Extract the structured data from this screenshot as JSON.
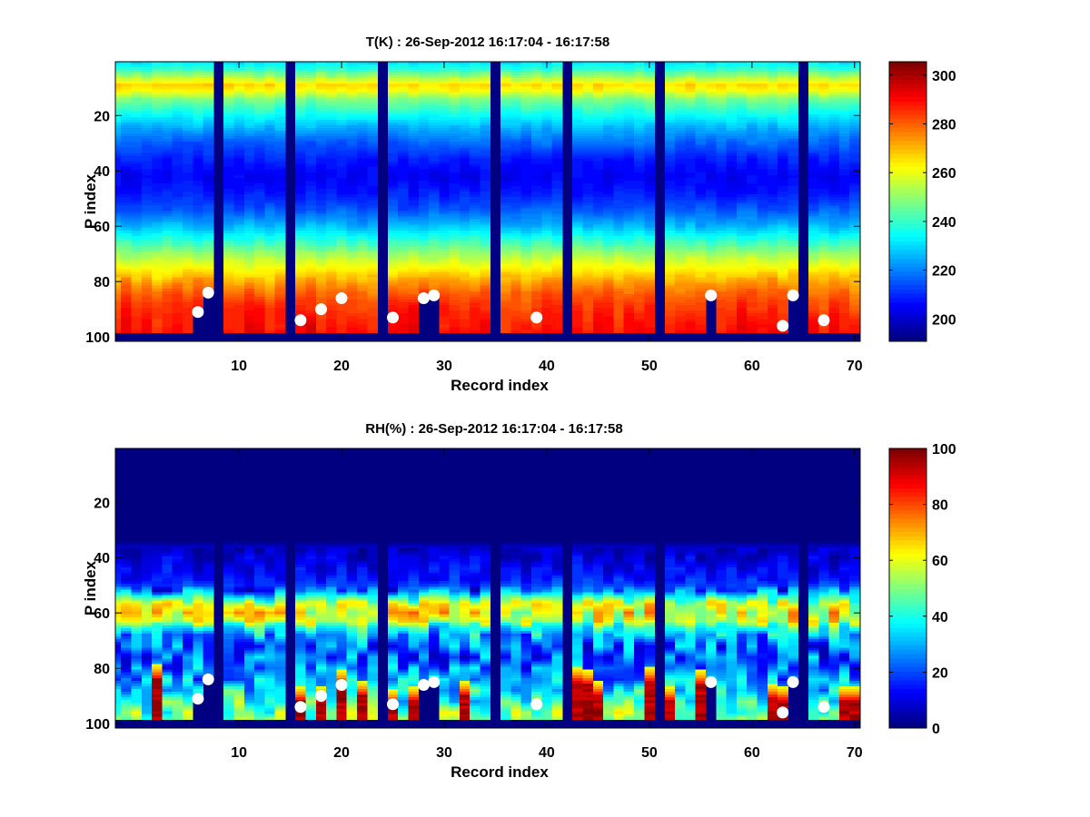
{
  "chart_data": [
    {
      "type": "heatmap",
      "title": "T(K) : 26-Sep-2012 16:17:04 - 16:17:58",
      "xlabel": "Record index",
      "ylabel": "P index",
      "xlim": [
        -2.05,
        70.55
      ],
      "ylim": [
        0.55,
        101.6
      ],
      "y_reversed": true,
      "xticks": [
        10,
        20,
        30,
        40,
        50,
        60,
        70
      ],
      "xtick_labels": [
        "10",
        "20",
        "30",
        "40",
        "50",
        "60",
        "70"
      ],
      "yticks": [
        20,
        40,
        60,
        80,
        100
      ],
      "ytick_labels": [
        "20",
        "40",
        "60",
        "80",
        "100"
      ],
      "colormap": "jet",
      "clim": [
        190.8,
        305.5
      ],
      "colorbar_ticks": [
        200,
        220,
        240,
        260,
        280,
        300
      ],
      "colorbar_labels": [
        "200",
        "220",
        "240",
        "260",
        "280",
        "300"
      ],
      "nan_color": "#000080",
      "record_range": [
        -2,
        70
      ],
      "p_range": [
        1,
        98
      ],
      "mean_profile": [
        [
          1,
          232
        ],
        [
          3,
          238
        ],
        [
          6,
          252
        ],
        [
          9,
          266
        ],
        [
          11,
          262
        ],
        [
          14,
          248
        ],
        [
          20,
          234
        ],
        [
          25,
          224
        ],
        [
          30,
          216
        ],
        [
          36,
          208
        ],
        [
          42,
          204
        ],
        [
          48,
          208
        ],
        [
          54,
          215
        ],
        [
          60,
          226
        ],
        [
          64,
          236
        ],
        [
          68,
          246
        ],
        [
          72,
          256
        ],
        [
          76,
          264
        ],
        [
          80,
          272
        ],
        [
          84,
          279
        ],
        [
          88,
          284
        ],
        [
          92,
          287
        ],
        [
          98,
          290
        ]
      ],
      "missing_records": [
        8,
        15,
        24,
        35,
        42,
        51,
        65
      ],
      "markers": [
        {
          "record": 6,
          "p": 91,
          "masked_below": true
        },
        {
          "record": 7,
          "p": 84,
          "masked_below": true
        },
        {
          "record": 16,
          "p": 94,
          "masked_below": false
        },
        {
          "record": 18,
          "p": 90,
          "masked_below": false
        },
        {
          "record": 20,
          "p": 86,
          "masked_below": false
        },
        {
          "record": 25,
          "p": 93,
          "masked_below": false
        },
        {
          "record": 28,
          "p": 86,
          "masked_below": true
        },
        {
          "record": 29,
          "p": 85,
          "masked_below": true
        },
        {
          "record": 39,
          "p": 93,
          "masked_below": false
        },
        {
          "record": 56,
          "p": 85,
          "masked_below": true
        },
        {
          "record": 63,
          "p": 96,
          "masked_below": false
        },
        {
          "record": 64,
          "p": 85,
          "masked_below": true
        },
        {
          "record": 67,
          "p": 94,
          "masked_below": false
        }
      ],
      "marker_color": "#ffffff"
    },
    {
      "type": "heatmap",
      "title": "RH(%) : 26-Sep-2012 16:17:04 - 16:17:58",
      "xlabel": "Record index",
      "ylabel": "P index",
      "xlim": [
        -2.05,
        70.55
      ],
      "ylim": [
        0.55,
        101.6
      ],
      "y_reversed": true,
      "xticks": [
        10,
        20,
        30,
        40,
        50,
        60,
        70
      ],
      "xtick_labels": [
        "10",
        "20",
        "30",
        "40",
        "50",
        "60",
        "70"
      ],
      "yticks": [
        20,
        40,
        60,
        80,
        100
      ],
      "ytick_labels": [
        "20",
        "40",
        "60",
        "80",
        "100"
      ],
      "colormap": "jet",
      "clim": [
        0,
        100
      ],
      "colorbar_ticks": [
        0,
        20,
        40,
        60,
        80,
        100
      ],
      "colorbar_labels": [
        "0",
        "20",
        "40",
        "60",
        "80",
        "100"
      ],
      "nan_color": "#000080",
      "record_range": [
        -2,
        70
      ],
      "p_range": [
        1,
        98
      ],
      "mean_profile": [
        [
          1,
          0
        ],
        [
          34,
          0
        ],
        [
          36,
          6
        ],
        [
          42,
          10
        ],
        [
          48,
          14
        ],
        [
          52,
          22
        ],
        [
          55,
          45
        ],
        [
          57,
          58
        ],
        [
          60,
          62
        ],
        [
          63,
          58
        ],
        [
          65,
          42
        ],
        [
          68,
          30
        ],
        [
          72,
          22
        ],
        [
          78,
          22
        ],
        [
          82,
          26
        ],
        [
          86,
          32
        ],
        [
          90,
          38
        ],
        [
          94,
          45
        ],
        [
          98,
          50
        ]
      ],
      "saturated_near_surface": [
        {
          "record": 2,
          "from_p": 84
        },
        {
          "record": 16,
          "from_p": 92
        },
        {
          "record": 18,
          "from_p": 92
        },
        {
          "record": 20,
          "from_p": 86
        },
        {
          "record": 22,
          "from_p": 90
        },
        {
          "record": 25,
          "from_p": 93
        },
        {
          "record": 27,
          "from_p": 92
        },
        {
          "record": 32,
          "from_p": 90
        },
        {
          "record": 43,
          "from_p": 85
        },
        {
          "record": 44,
          "from_p": 86
        },
        {
          "record": 45,
          "from_p": 90
        },
        {
          "record": 50,
          "from_p": 85
        },
        {
          "record": 52,
          "from_p": 92
        },
        {
          "record": 55,
          "from_p": 86
        },
        {
          "record": 62,
          "from_p": 91
        },
        {
          "record": 63,
          "from_p": 92
        },
        {
          "record": 69,
          "from_p": 92
        },
        {
          "record": 70,
          "from_p": 92
        }
      ],
      "missing_records": [
        8,
        15,
        24,
        35,
        42,
        51,
        65
      ],
      "markers": [
        {
          "record": 6,
          "p": 91,
          "masked_below": true
        },
        {
          "record": 7,
          "p": 84,
          "masked_below": true
        },
        {
          "record": 16,
          "p": 94,
          "masked_below": false
        },
        {
          "record": 18,
          "p": 90,
          "masked_below": false
        },
        {
          "record": 20,
          "p": 86,
          "masked_below": false
        },
        {
          "record": 25,
          "p": 93,
          "masked_below": false
        },
        {
          "record": 28,
          "p": 86,
          "masked_below": true
        },
        {
          "record": 29,
          "p": 85,
          "masked_below": true
        },
        {
          "record": 39,
          "p": 93,
          "masked_below": false
        },
        {
          "record": 56,
          "p": 85,
          "masked_below": true
        },
        {
          "record": 63,
          "p": 96,
          "masked_below": false
        },
        {
          "record": 64,
          "p": 85,
          "masked_below": true
        },
        {
          "record": 67,
          "p": 94,
          "masked_below": false
        }
      ],
      "marker_color": "#ffffff"
    }
  ]
}
